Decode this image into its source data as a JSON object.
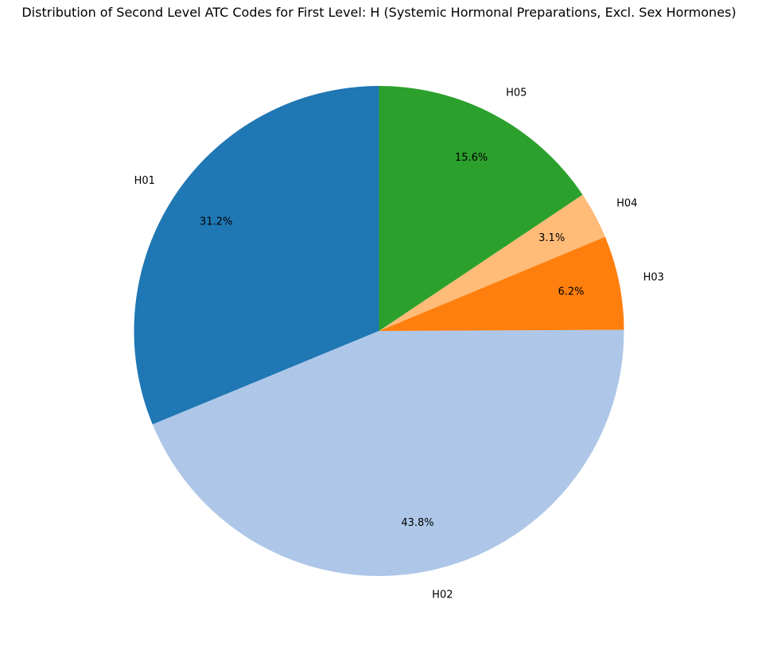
{
  "chart_data": {
    "type": "pie",
    "title": "Distribution of Second Level ATC Codes for First Level: H (Systemic Hormonal Preparations, Excl. Sex Hormones)",
    "start_angle_deg": 90,
    "direction": "counterclockwise",
    "slices": [
      {
        "label": "H01",
        "value": 31.2,
        "pct_label": "31.2%",
        "color": "#1f77b4"
      },
      {
        "label": "H02",
        "value": 43.8,
        "pct_label": "43.8%",
        "color": "#aec7e8"
      },
      {
        "label": "H03",
        "value": 6.2,
        "pct_label": "6.2%",
        "color": "#ff7f0e"
      },
      {
        "label": "H04",
        "value": 3.1,
        "pct_label": "3.1%",
        "color": "#ffbb78"
      },
      {
        "label": "H05",
        "value": 15.6,
        "pct_label": "15.6%",
        "color": "#2ca02c"
      }
    ]
  }
}
